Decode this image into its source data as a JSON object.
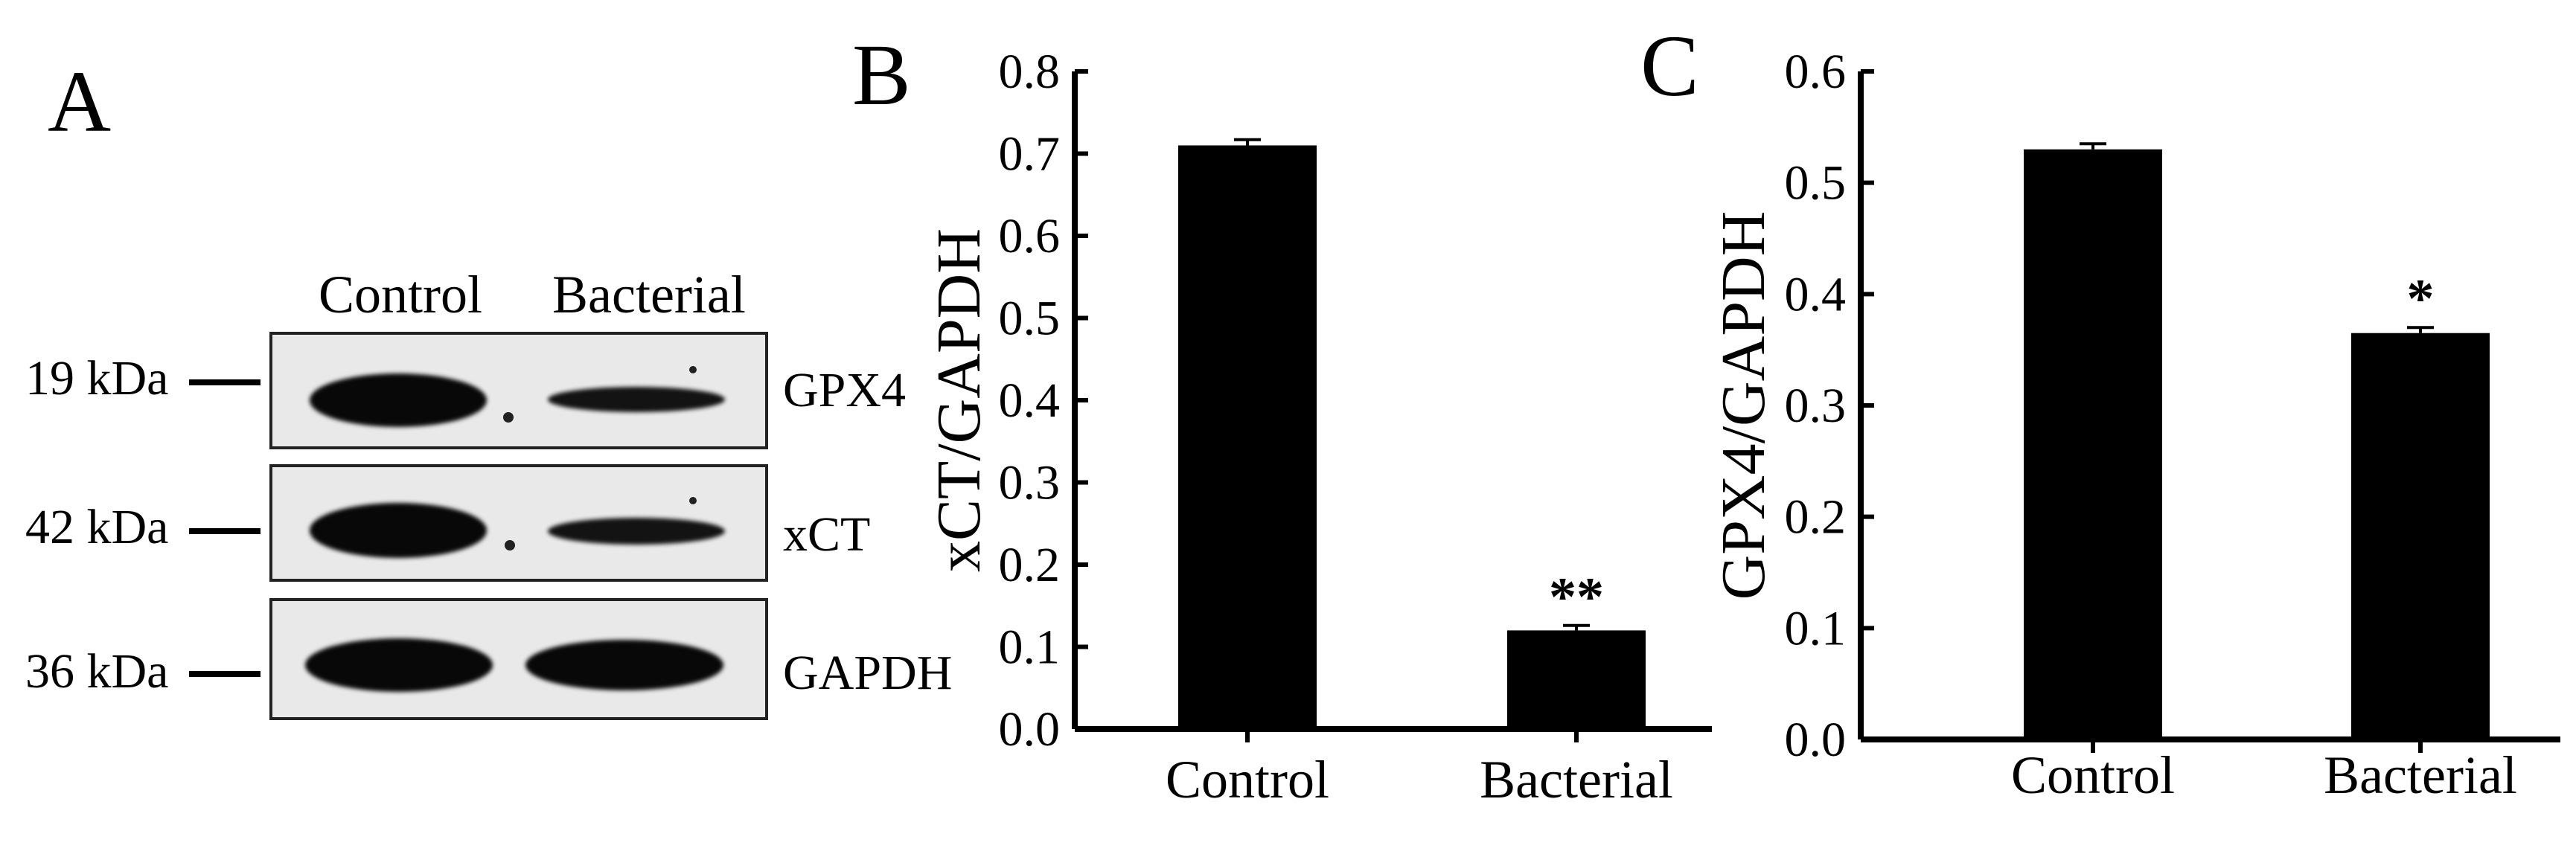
{
  "panel_a": {
    "letter": "A",
    "lanes": [
      "Control",
      "Bacterial"
    ],
    "blots": [
      {
        "protein": "GPX4",
        "mw": "19 kDa",
        "control_intensity": 1.0,
        "bacterial_intensity": 0.5
      },
      {
        "protein": "xCT",
        "mw": "42 kDa",
        "control_intensity": 1.0,
        "bacterial_intensity": 0.5
      },
      {
        "protein": "GAPDH",
        "mw": "36 kDa",
        "control_intensity": 1.0,
        "bacterial_intensity": 0.95
      }
    ]
  },
  "chart_data": [
    {
      "type": "bar",
      "panel": "B",
      "categories": [
        "Control",
        "Bacterial"
      ],
      "values": [
        0.71,
        0.12
      ],
      "errors": [
        0.007,
        0.006
      ],
      "significance": [
        "",
        "**"
      ],
      "ylabel": "xCT/GAPDH",
      "xlabel": "",
      "ylim": [
        0,
        0.8
      ],
      "yticks": [
        "0.0",
        "0.1",
        "0.2",
        "0.3",
        "0.4",
        "0.5",
        "0.6",
        "0.7",
        "0.8"
      ],
      "grid": false,
      "bar_color": "#000000"
    },
    {
      "type": "bar",
      "panel": "C",
      "categories": [
        "Control",
        "Bacterial"
      ],
      "values": [
        0.53,
        0.365
      ],
      "errors": [
        0.005,
        0.005
      ],
      "significance": [
        "",
        "*"
      ],
      "ylabel": "GPX4/GAPDH",
      "xlabel": "",
      "ylim": [
        0,
        0.6
      ],
      "yticks": [
        "0.0",
        "0.1",
        "0.2",
        "0.3",
        "0.4",
        "0.5",
        "0.6"
      ],
      "grid": false,
      "bar_color": "#000000"
    }
  ]
}
